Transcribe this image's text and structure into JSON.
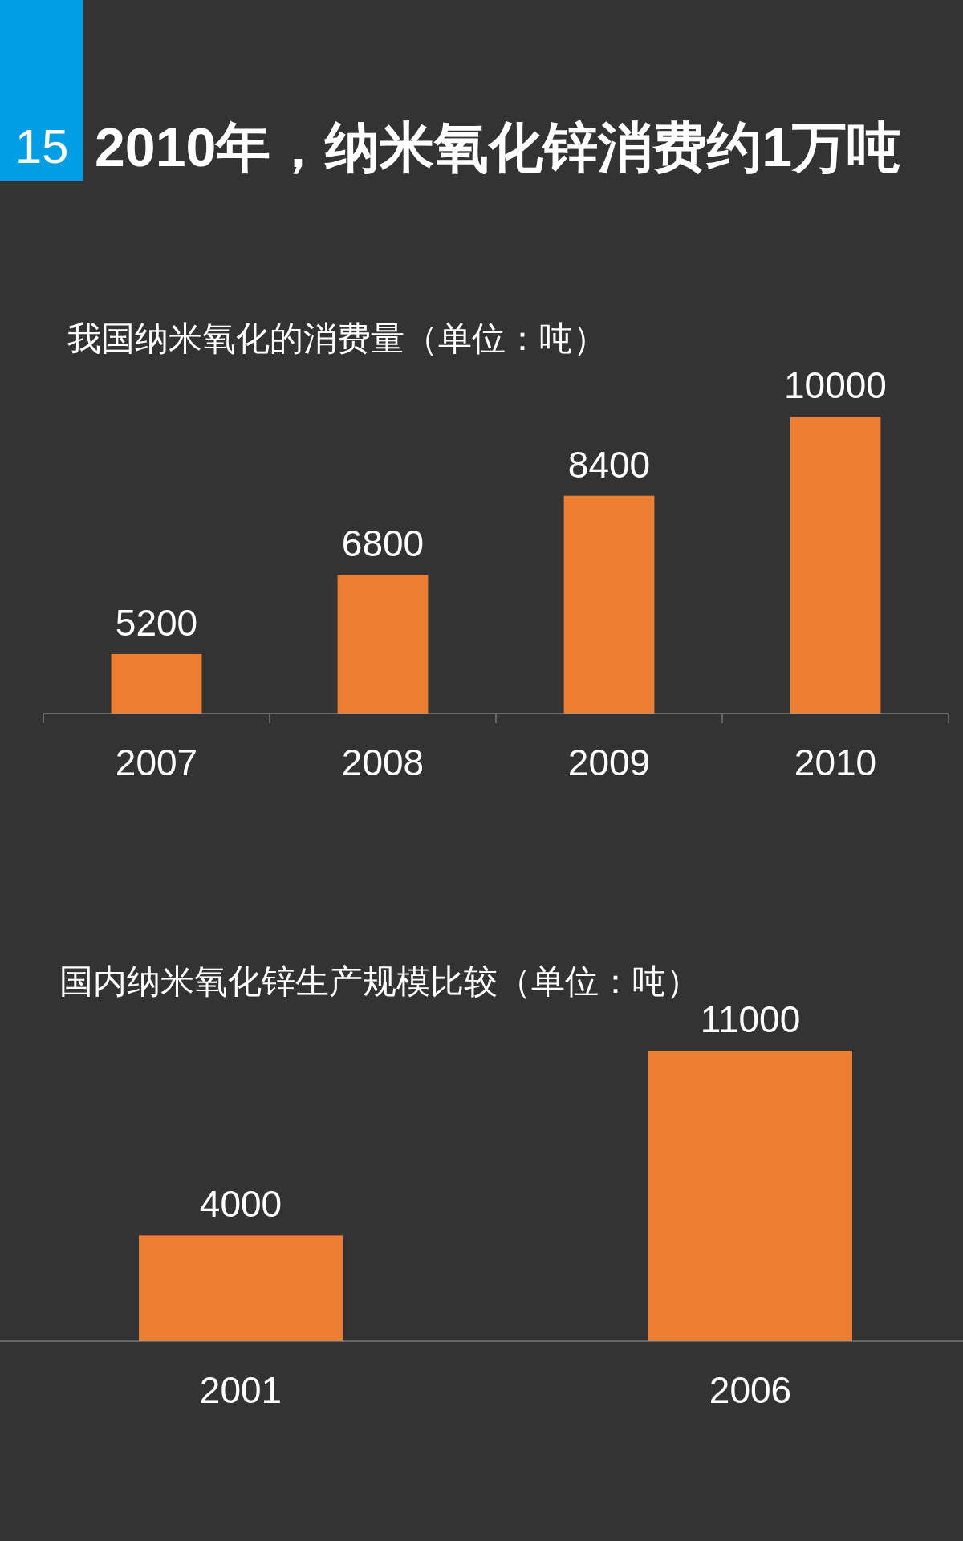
{
  "chart_data": [
    {
      "type": "bar",
      "title": "2010年，纳米氧化锌消费约1万吨",
      "subtitle": "我国纳米氧化的消费量（单位：吨）",
      "annotations": [
        "15"
      ],
      "categories": [
        "2007",
        "2008",
        "2009",
        "2010"
      ],
      "values": [
        5200,
        6800,
        8400,
        10000
      ],
      "color": "#ed7d31",
      "ylim": [
        4000,
        10000
      ],
      "data_labels": true
    },
    {
      "type": "bar",
      "title": "国内纳米氧化锌生产规模比较（单位：吨）",
      "categories": [
        "2001",
        "2006"
      ],
      "values": [
        4000,
        11000
      ],
      "color": "#ed7d31",
      "ylim": [
        0,
        11000
      ],
      "data_labels": true
    }
  ]
}
